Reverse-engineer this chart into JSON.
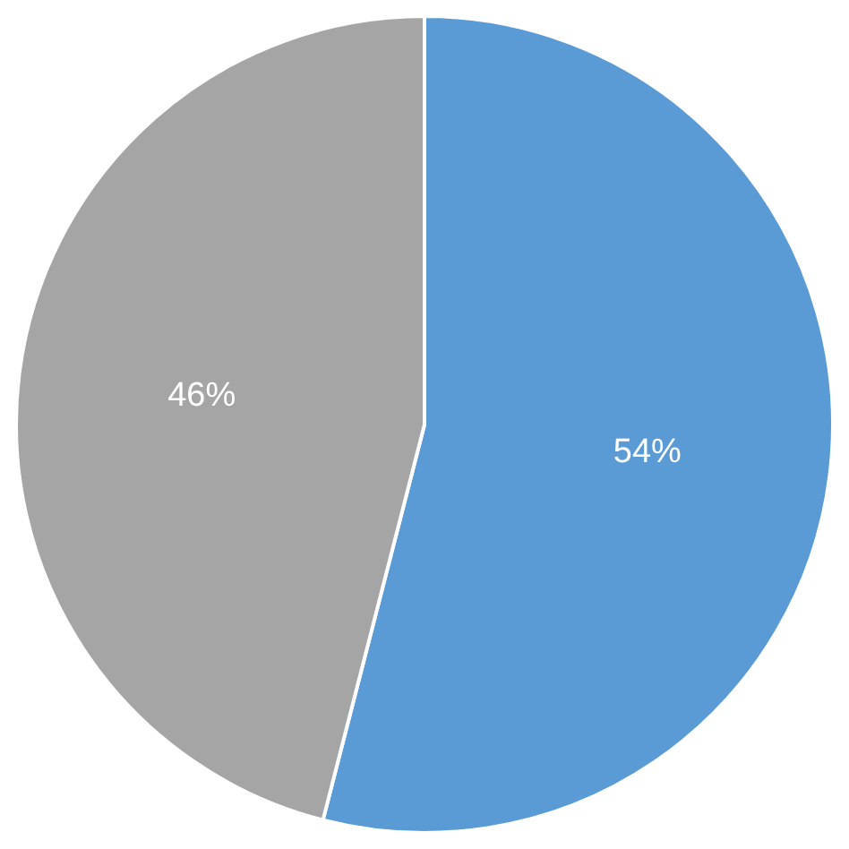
{
  "chart_data": {
    "type": "pie",
    "categories": [
      null,
      null
    ],
    "values": [
      54,
      46
    ],
    "colors": [
      "#5b9bd5",
      "#a5a5a5"
    ],
    "value_labels": [
      "54%",
      "46%"
    ],
    "legend": false
  }
}
